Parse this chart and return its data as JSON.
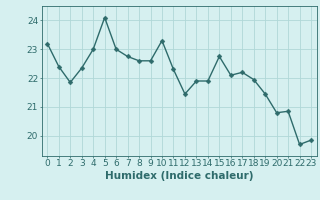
{
  "x": [
    0,
    1,
    2,
    3,
    4,
    5,
    6,
    7,
    8,
    9,
    10,
    11,
    12,
    13,
    14,
    15,
    16,
    17,
    18,
    19,
    20,
    21,
    22,
    23
  ],
  "y": [
    23.2,
    22.4,
    21.85,
    22.35,
    23.0,
    24.1,
    23.0,
    22.75,
    22.6,
    22.6,
    23.3,
    22.3,
    21.45,
    21.9,
    21.9,
    22.75,
    22.1,
    22.2,
    21.95,
    21.45,
    20.8,
    20.85,
    19.7,
    19.85
  ],
  "line_color": "#2e6b6b",
  "marker": "D",
  "markersize": 2.5,
  "linewidth": 1.0,
  "bg_color": "#d6f0f0",
  "grid_color": "#b0d8d8",
  "xlabel": "Humidex (Indice chaleur)",
  "ylim": [
    19.3,
    24.5
  ],
  "yticks": [
    20,
    21,
    22,
    23,
    24
  ],
  "xticks": [
    0,
    1,
    2,
    3,
    4,
    5,
    6,
    7,
    8,
    9,
    10,
    11,
    12,
    13,
    14,
    15,
    16,
    17,
    18,
    19,
    20,
    21,
    22,
    23
  ],
  "tick_color": "#2e6b6b",
  "label_color": "#2e6b6b",
  "xlabel_fontsize": 7.5,
  "tick_fontsize": 6.5
}
